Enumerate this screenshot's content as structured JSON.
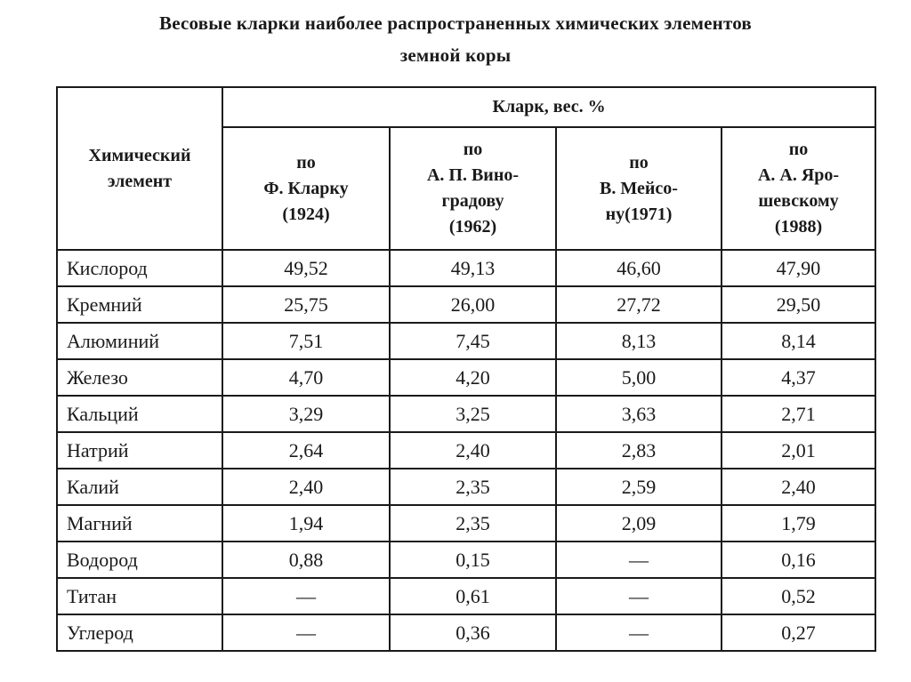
{
  "title": {
    "line1": "Весовые кларки наиболее распространенных химических элементов",
    "line2": "земной коры"
  },
  "table": {
    "element_header_lines": [
      "Химический",
      "элемент"
    ],
    "group_header": "Кларк, вес. %",
    "columns": [
      {
        "lines": [
          "по",
          "Ф. Кларку",
          "(1924)"
        ]
      },
      {
        "lines": [
          "по",
          "А. П. Вино-",
          "градову",
          "(1962)"
        ]
      },
      {
        "lines": [
          "по",
          "В. Мейсо-",
          "ну(1971)"
        ]
      },
      {
        "lines": [
          "по",
          "А. А. Яро-",
          "шевскому",
          "(1988)"
        ]
      }
    ],
    "rows": [
      {
        "element": "Кислород",
        "values": [
          "49,52",
          "49,13",
          "46,60",
          "47,90"
        ]
      },
      {
        "element": "Кремний",
        "values": [
          "25,75",
          "26,00",
          "27,72",
          "29,50"
        ]
      },
      {
        "element": "Алюминий",
        "values": [
          "7,51",
          "7,45",
          "8,13",
          "8,14"
        ]
      },
      {
        "element": "Железо",
        "values": [
          "4,70",
          "4,20",
          "5,00",
          "4,37"
        ]
      },
      {
        "element": "Кальций",
        "values": [
          "3,29",
          "3,25",
          "3,63",
          "2,71"
        ]
      },
      {
        "element": "Натрий",
        "values": [
          "2,64",
          "2,40",
          "2,83",
          "2,01"
        ]
      },
      {
        "element": "Калий",
        "values": [
          "2,40",
          "2,35",
          "2,59",
          "2,40"
        ]
      },
      {
        "element": "Магний",
        "values": [
          "1,94",
          "2,35",
          "2,09",
          "1,79"
        ]
      },
      {
        "element": "Водород",
        "values": [
          "0,88",
          "0,15",
          "—",
          "0,16"
        ]
      },
      {
        "element": "Титан",
        "values": [
          "—",
          "0,61",
          "—",
          "0,52"
        ]
      },
      {
        "element": "Углерод",
        "values": [
          "—",
          "0,36",
          "—",
          "0,27"
        ]
      }
    ]
  }
}
